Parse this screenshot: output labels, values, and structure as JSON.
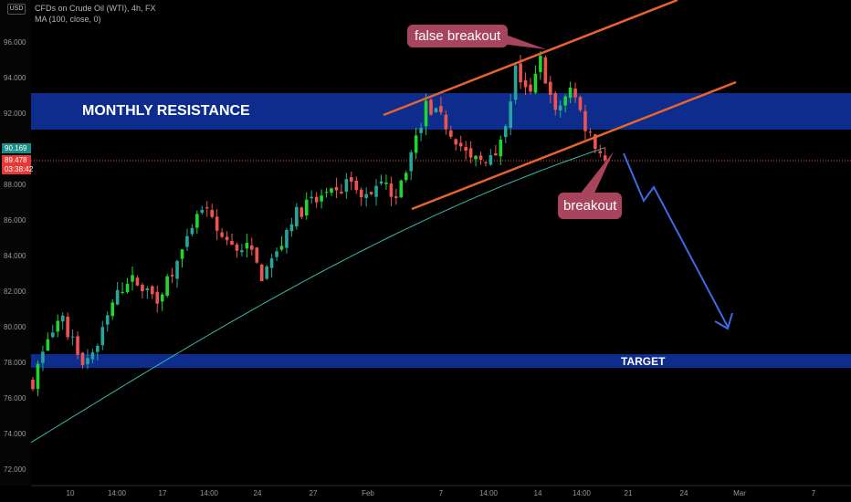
{
  "header": {
    "currency": "USD",
    "symbol_line": "CFDs on Crude Oil (WTI), 4h, FX",
    "indicator_line": "MA (100, close, 0)"
  },
  "price_axis": {
    "ticks": [
      "96.000",
      "94.000",
      "92.000",
      "90.000",
      "88.000",
      "86.000",
      "84.000",
      "82.000",
      "80.000",
      "78.000",
      "76.000",
      "74.000",
      "72.000"
    ],
    "ma_badge": "90.169",
    "price_badge": "89.478",
    "countdown_badge": "03:38:42"
  },
  "time_axis": {
    "ticks": [
      "10",
      "14:00",
      "17",
      "14:00",
      "24",
      "27",
      "Feb",
      "7",
      "14:00",
      "14",
      "14:00",
      "21",
      "24",
      "Mar",
      "7"
    ]
  },
  "annotations": {
    "monthly_resistance": "MONTHLY RESISTANCE",
    "target": "TARGET",
    "false_breakout": "false breakout",
    "breakout": "breakout"
  },
  "colors": {
    "up_candle": "#26a69a",
    "up_candle_bright": "#1fd631",
    "down_candle": "#ef5350",
    "zone": "#0d2c8c",
    "channel": "#e8642c",
    "projection_arrow": "#3d6ae5",
    "moving_average": "#37b8a8",
    "callout_bg": "#a8445c",
    "price_line": "#ef5350"
  },
  "chart_data": {
    "type": "candlestick",
    "timeframe": "4h",
    "instrument": "CFDs on Crude Oil (WTI)",
    "y_range": [
      72,
      97
    ],
    "resistance_zone": [
      91.2,
      93.2
    ],
    "target_zone": [
      77.8,
      78.5
    ],
    "current_price": 89.478,
    "ma_value": 90.169,
    "trend_path": [
      [
        0,
        77.0
      ],
      [
        3,
        79.5
      ],
      [
        6,
        80.4
      ],
      [
        8,
        79.2
      ],
      [
        10,
        78.2
      ],
      [
        13,
        79.0
      ],
      [
        16,
        81.4
      ],
      [
        19,
        82.8
      ],
      [
        22,
        82.5
      ],
      [
        25,
        81.8
      ],
      [
        28,
        83.3
      ],
      [
        31,
        84.8
      ],
      [
        34,
        86.8
      ],
      [
        37,
        85.5
      ],
      [
        40,
        84.5
      ],
      [
        43,
        84.6
      ],
      [
        46,
        83.0
      ],
      [
        49,
        84.2
      ],
      [
        52,
        86.2
      ],
      [
        55,
        86.9
      ],
      [
        58,
        87.3
      ],
      [
        61,
        87.6
      ],
      [
        64,
        88.3
      ],
      [
        67,
        87.3
      ],
      [
        70,
        88.5
      ],
      [
        73,
        87.3
      ],
      [
        76,
        89.8
      ],
      [
        79,
        92.5
      ],
      [
        82,
        91.8
      ],
      [
        85,
        90.7
      ],
      [
        88,
        89.4
      ],
      [
        91,
        89.6
      ],
      [
        94,
        90.4
      ],
      [
        97,
        94.5
      ],
      [
        100,
        93.1
      ],
      [
        102,
        95.2
      ],
      [
        105,
        92.0
      ],
      [
        108,
        93.7
      ],
      [
        111,
        91.4
      ],
      [
        113,
        90.4
      ],
      [
        115,
        89.5
      ]
    ]
  }
}
